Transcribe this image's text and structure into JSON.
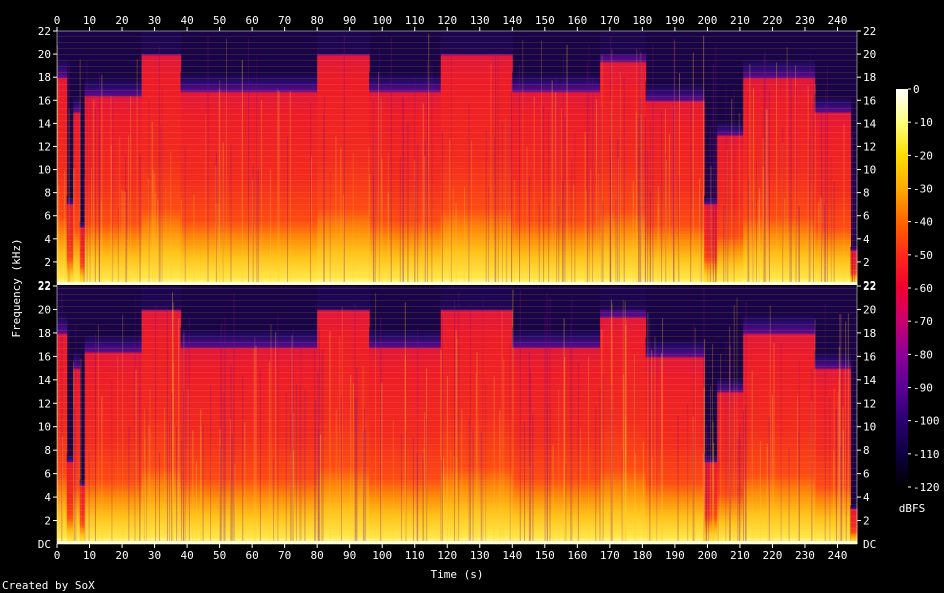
{
  "chart_data": {
    "type": "heatmap",
    "title": "",
    "xlabel": "Time (s)",
    "ylabel": "Frequency (kHz)",
    "xlim": [
      0,
      246
    ],
    "x_ticks": [
      0,
      10,
      20,
      30,
      40,
      50,
      60,
      70,
      80,
      90,
      100,
      110,
      120,
      130,
      140,
      150,
      160,
      170,
      180,
      190,
      200,
      210,
      220,
      230,
      240
    ],
    "channels": [
      {
        "name": "",
        "ylim": [
          0,
          22
        ],
        "y_ticks": [
          "2",
          "4",
          "6",
          "8",
          "10",
          "12",
          "14",
          "16",
          "18",
          "20",
          "22"
        ],
        "bottom_label": "22"
      },
      {
        "name": "",
        "ylim": [
          0,
          22
        ],
        "y_ticks": [
          "2",
          "4",
          "6",
          "8",
          "10",
          "12",
          "14",
          "16",
          "18",
          "20",
          "22"
        ],
        "bottom_label": "DC"
      }
    ],
    "colorbar": {
      "label": "dBFS",
      "range": [
        -120,
        0
      ],
      "ticks": [
        "0",
        "-10",
        "-20",
        "-30",
        "-40",
        "-50",
        "-60",
        "-70",
        "-80",
        "-90",
        "-100",
        "-110",
        "-120"
      ],
      "colors": [
        "#ffffff",
        "#ffff80",
        "#ffdd00",
        "#ffaa00",
        "#ff6600",
        "#ff2a1a",
        "#f00030",
        "#c8006e",
        "#8c0096",
        "#5a0096",
        "#2a0070",
        "#0d0040",
        "#000000"
      ]
    },
    "segments": [
      {
        "t0": 0,
        "t1": 3,
        "hf": 0.9
      },
      {
        "t0": 3,
        "t1": 5,
        "hf": 0.35
      },
      {
        "t0": 5,
        "t1": 7,
        "hf": 0.75
      },
      {
        "t0": 7,
        "t1": 8.5,
        "hf": 0.25
      },
      {
        "t0": 8.5,
        "t1": 26,
        "hf": 0.82
      },
      {
        "t0": 26,
        "t1": 38,
        "hf": 1.0
      },
      {
        "t0": 38,
        "t1": 80,
        "hf": 0.84
      },
      {
        "t0": 80,
        "t1": 96,
        "hf": 1.0
      },
      {
        "t0": 96,
        "t1": 118,
        "hf": 0.84
      },
      {
        "t0": 118,
        "t1": 140,
        "hf": 1.0
      },
      {
        "t0": 140,
        "t1": 167,
        "hf": 0.84
      },
      {
        "t0": 167,
        "t1": 181,
        "hf": 0.97
      },
      {
        "t0": 181,
        "t1": 199,
        "hf": 0.8
      },
      {
        "t0": 199,
        "t1": 203,
        "hf": 0.35
      },
      {
        "t0": 203,
        "t1": 211,
        "hf": 0.65
      },
      {
        "t0": 211,
        "t1": 233,
        "hf": 0.9
      },
      {
        "t0": 233,
        "t1": 244,
        "hf": 0.75
      },
      {
        "t0": 244,
        "t1": 246,
        "hf": 0.15
      }
    ],
    "credit": "Created by SoX"
  }
}
